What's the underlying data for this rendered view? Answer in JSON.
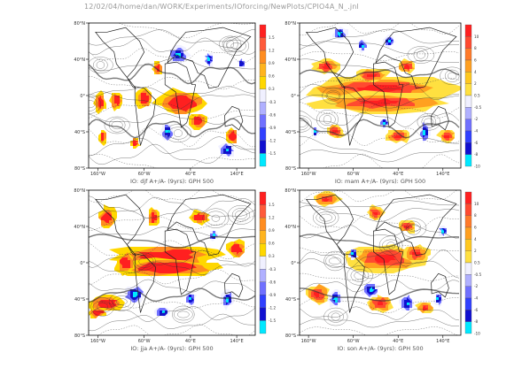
{
  "header": {
    "path": "12/02/04/home/dan/WORK/Experiments/IOforcing/NewPlots/CPIO4A_N_.jnl"
  },
  "chart_data": [
    {
      "type": "heatmap",
      "title": "IO: djf A+/A- (9yrs): GPH 500",
      "season": "djf",
      "ylabels": [
        "80°N",
        "40°N",
        "0°",
        "40°S",
        "80°S"
      ],
      "xlabels": [
        "160°W",
        "60°W",
        "40°E",
        "140°E"
      ],
      "colorbar": [
        "1.5",
        "1.2",
        "0.9",
        "0.6",
        "0.3",
        "-0.3",
        "-0.6",
        "-0.9",
        "-1.2",
        "-1.5"
      ],
      "colorbar_colors": [
        "#ff2020",
        "#ff5a3a",
        "#ff8c20",
        "#ffb41e",
        "#ffd700",
        "#f0f0ff",
        "#b0b0ff",
        "#7070ff",
        "#3040ff",
        "#1010d0",
        "#00e8ff"
      ],
      "warm_regions": [
        [
          -155,
          -8,
          12,
          12
        ],
        [
          -120,
          -5,
          14,
          10
        ],
        [
          -60,
          -3,
          20,
          12
        ],
        [
          -30,
          30,
          10,
          8
        ],
        [
          20,
          -8,
          60,
          14
        ],
        [
          55,
          -28,
          20,
          10
        ],
        [
          -150,
          -45,
          8,
          8
        ],
        [
          130,
          -45,
          14,
          10
        ],
        [
          -80,
          -52,
          10,
          6
        ]
      ],
      "cool_regions": [
        [
          15,
          45,
          22,
          10
        ],
        [
          -10,
          -40,
          14,
          10
        ],
        [
          80,
          40,
          10,
          8
        ],
        [
          120,
          -60,
          18,
          8
        ],
        [
          150,
          35,
          8,
          6
        ]
      ]
    },
    {
      "type": "heatmap",
      "title": "IO: mam A+/A- (9yrs): GPH 500",
      "season": "mam",
      "ylabels": [
        "80°N",
        "40°N",
        "0°",
        "40°S",
        "80°S"
      ],
      "xlabels": [
        "160°W",
        "60°W",
        "40°E",
        "140°E"
      ],
      "colorbar": [
        "10",
        "8",
        "6",
        "4",
        "2",
        "0.5",
        "-0.5",
        "-2",
        "-4",
        "-6",
        "-8",
        "-10"
      ],
      "colorbar_colors": [
        "#ff2020",
        "#ff4a30",
        "#ff7a2a",
        "#ffa020",
        "#ffc81e",
        "#ffe040",
        "#f0f0ff",
        "#b0b0ff",
        "#7070ff",
        "#3040ff",
        "#1010d0",
        "#00e8ff"
      ],
      "warm_regions": [
        [
          0,
          8,
          170,
          14
        ],
        [
          0,
          -8,
          150,
          12
        ],
        [
          -120,
          32,
          30,
          8
        ],
        [
          60,
          32,
          20,
          8
        ],
        [
          -100,
          -40,
          20,
          8
        ],
        [
          40,
          -45,
          30,
          8
        ],
        [
          150,
          -45,
          20,
          8
        ],
        [
          -20,
          22,
          40,
          8
        ]
      ],
      "cool_regions": [
        [
          -90,
          68,
          16,
          8
        ],
        [
          -40,
          55,
          10,
          6
        ],
        [
          20,
          60,
          14,
          6
        ],
        [
          100,
          -40,
          12,
          12
        ],
        [
          -145,
          -40,
          8,
          6
        ],
        [
          10,
          -30,
          10,
          6
        ]
      ]
    },
    {
      "type": "heatmap",
      "title": "IO: jja A+/A- (9yrs): GPH 500",
      "season": "jja",
      "ylabels": [
        "80°N",
        "40°N",
        "0°",
        "40°S",
        "80°S"
      ],
      "xlabels": [
        "160°W",
        "60°W",
        "40°E",
        "140°E"
      ],
      "colorbar": [
        "1.5",
        "1.2",
        "0.9",
        "0.6",
        "0.3",
        "-0.3",
        "-0.6",
        "-0.9",
        "-1.2",
        "-1.5"
      ],
      "colorbar_colors": [
        "#ff2020",
        "#ff5a3a",
        "#ff8c20",
        "#ffb41e",
        "#ffd700",
        "#f0f0ff",
        "#b0b0ff",
        "#7070ff",
        "#3040ff",
        "#1010d0",
        "#00e8ff"
      ],
      "warm_regions": [
        [
          -10,
          8,
          120,
          12
        ],
        [
          -10,
          -5,
          120,
          10
        ],
        [
          -140,
          50,
          20,
          12
        ],
        [
          -40,
          50,
          14,
          10
        ],
        [
          60,
          50,
          20,
          8
        ],
        [
          -140,
          -45,
          40,
          10
        ],
        [
          -160,
          -55,
          20,
          6
        ],
        [
          140,
          15,
          20,
          10
        ],
        [
          -100,
          0,
          20,
          12
        ]
      ],
      "cool_regions": [
        [
          -80,
          -35,
          24,
          10
        ],
        [
          120,
          -40,
          14,
          10
        ],
        [
          40,
          -40,
          12,
          8
        ],
        [
          -20,
          -55,
          16,
          6
        ],
        [
          90,
          30,
          10,
          6
        ]
      ]
    },
    {
      "type": "heatmap",
      "title": "IO: son A+/A- (9yrs): GPH 500",
      "season": "son",
      "ylabels": [
        "80°N",
        "40°N",
        "0°",
        "40°S",
        "80°S"
      ],
      "xlabels": [
        "160°W",
        "60°W",
        "40°E",
        "140°E"
      ],
      "colorbar": [
        "10",
        "8",
        "6",
        "4",
        "2",
        "0.5",
        "-0.5",
        "-2",
        "-4",
        "-6",
        "-8",
        "-10"
      ],
      "colorbar_colors": [
        "#ff2020",
        "#ff4a30",
        "#ff7a2a",
        "#ffa020",
        "#ffc81e",
        "#ffe040",
        "#f0f0ff",
        "#b0b0ff",
        "#7070ff",
        "#3040ff",
        "#1010d0",
        "#00e8ff"
      ],
      "warm_regions": [
        [
          10,
          5,
          90,
          16
        ],
        [
          80,
          10,
          30,
          10
        ],
        [
          -120,
          70,
          30,
          8
        ],
        [
          -10,
          55,
          20,
          8
        ],
        [
          -140,
          -35,
          26,
          12
        ],
        [
          0,
          -45,
          30,
          10
        ],
        [
          100,
          -50,
          20,
          6
        ],
        [
          60,
          40,
          20,
          8
        ]
      ],
      "cool_regions": [
        [
          -20,
          -30,
          20,
          8
        ],
        [
          -100,
          -40,
          14,
          10
        ],
        [
          60,
          -45,
          16,
          10
        ],
        [
          130,
          -40,
          10,
          8
        ],
        [
          140,
          35,
          10,
          6
        ],
        [
          -60,
          10,
          10,
          6
        ]
      ]
    }
  ]
}
